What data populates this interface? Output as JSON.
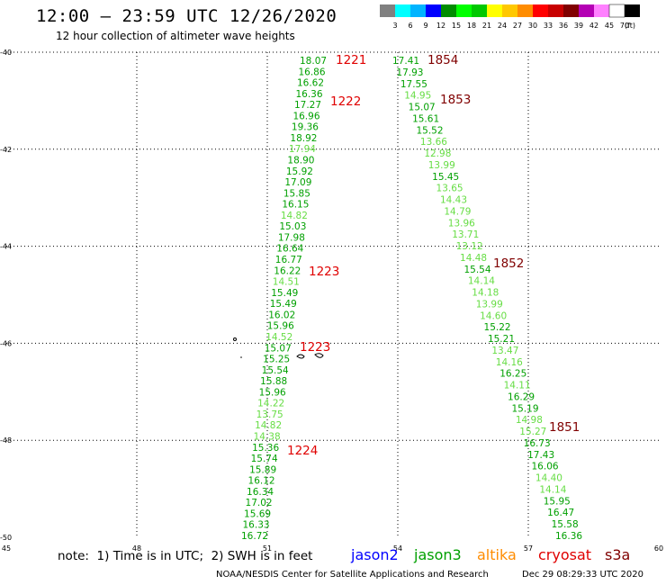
{
  "title": "12:00 – 23:59 UTC 12/26/2020",
  "subtitle": "12 hour collection of altimeter wave heights",
  "colorbar": {
    "unit_label": "(ft)",
    "colors": [
      "#808080",
      "#00ffff",
      "#00b4ff",
      "#0000ff",
      "#008c00",
      "#00ff00",
      "#00c800",
      "#ffff00",
      "#ffc800",
      "#ff8c00",
      "#ff0000",
      "#c80000",
      "#800000",
      "#b400b4",
      "#ff80ff",
      "#ffffff",
      "#000000"
    ],
    "labels": [
      "3",
      "6",
      "9",
      "12",
      "15",
      "18",
      "21",
      "24",
      "27",
      "30",
      "33",
      "36",
      "39",
      "42",
      "45",
      "70"
    ]
  },
  "axes": {
    "lat_labels": [
      "-40",
      "-42",
      "-44",
      "-46",
      "-48",
      "-50"
    ],
    "lon_labels": [
      "45",
      "48",
      "51",
      "54",
      "57",
      "60"
    ]
  },
  "passes": [
    {
      "label": "1221",
      "color": "#e00000"
    },
    {
      "label": "1222",
      "color": "#e00000"
    },
    {
      "label": "1223",
      "color": "#e00000"
    },
    {
      "label": "1223",
      "color": "#e00000"
    },
    {
      "label": "1224",
      "color": "#e00000"
    },
    {
      "label": "1854",
      "color": "#800000"
    },
    {
      "label": "1853",
      "color": "#800000"
    },
    {
      "label": "1852",
      "color": "#800000"
    },
    {
      "label": "1851",
      "color": "#800000"
    }
  ],
  "track_a_values": [
    "18.07",
    "16.86",
    "16.62",
    "16.36",
    "17.27",
    "16.96",
    "19.36",
    "18.92",
    "17.94",
    "18.90",
    "15.92",
    "17.09",
    "15.85",
    "16.15",
    "14.82",
    "15.03",
    "17.98",
    "16.64",
    "16.77",
    "16.22",
    "14.51",
    "15.49",
    "15.49",
    "16.02",
    "15.96",
    "14.52",
    "15.07",
    "15.25",
    "15.54",
    "15.88",
    "15.96",
    "14.22",
    "13.75",
    "14.82",
    "14.38",
    "15.36",
    "15.74",
    "15.89",
    "16.12",
    "16.34",
    "17.02",
    "15.69",
    "16.33",
    "16.72"
  ],
  "track_a_colors": [
    "g",
    "g",
    "g",
    "g",
    "g",
    "g",
    "g",
    "g",
    "l",
    "g",
    "g",
    "g",
    "g",
    "g",
    "l",
    "g",
    "g",
    "g",
    "g",
    "g",
    "l",
    "g",
    "g",
    "g",
    "g",
    "l",
    "g",
    "g",
    "g",
    "g",
    "g",
    "l",
    "l",
    "l",
    "l",
    "g",
    "g",
    "g",
    "g",
    "g",
    "g",
    "g",
    "g",
    "g"
  ],
  "track_b_values": [
    "17.41",
    "17.93",
    "17.55",
    "14.95",
    "15.07",
    "15.61",
    "15.52",
    "13.66",
    "12.98",
    "13.99",
    "15.45",
    "13.65",
    "14.43",
    "14.79",
    "13.96",
    "13.71",
    "13.12",
    "14.48",
    "15.54",
    "14.14",
    "14.18",
    "13.99",
    "14.60",
    "15.22",
    "15.21",
    "13.47",
    "14.16",
    "16.25",
    "14.11",
    "16.29",
    "15.19",
    "14.98",
    "15.27",
    "16.73",
    "17.43",
    "16.06",
    "14.40",
    "14.14",
    "15.95",
    "16.47",
    "15.58",
    "16.36"
  ],
  "track_b_colors": [
    "g",
    "g",
    "g",
    "l",
    "g",
    "g",
    "g",
    "l",
    "l",
    "l",
    "g",
    "l",
    "l",
    "l",
    "l",
    "l",
    "l",
    "l",
    "g",
    "l",
    "l",
    "l",
    "l",
    "g",
    "g",
    "l",
    "l",
    "g",
    "l",
    "g",
    "g",
    "l",
    "l",
    "g",
    "g",
    "g",
    "l",
    "l",
    "g",
    "g",
    "g",
    "g"
  ],
  "note": "note:  1) Time is in UTC;  2) SWH is in feet",
  "satellites": [
    {
      "name": "jason2",
      "color": "#0000ff"
    },
    {
      "name": "jason3",
      "color": "#00a000"
    },
    {
      "name": "altika",
      "color": "#ff8c00"
    },
    {
      "name": "cryosat",
      "color": "#e00000"
    },
    {
      "name": "s3a",
      "color": "#800000"
    }
  ],
  "footer_left": "NOAA/NESDIS Center for Satellite Applications and Research",
  "footer_right": "Dec 29 08:29:33 UTC 2020"
}
